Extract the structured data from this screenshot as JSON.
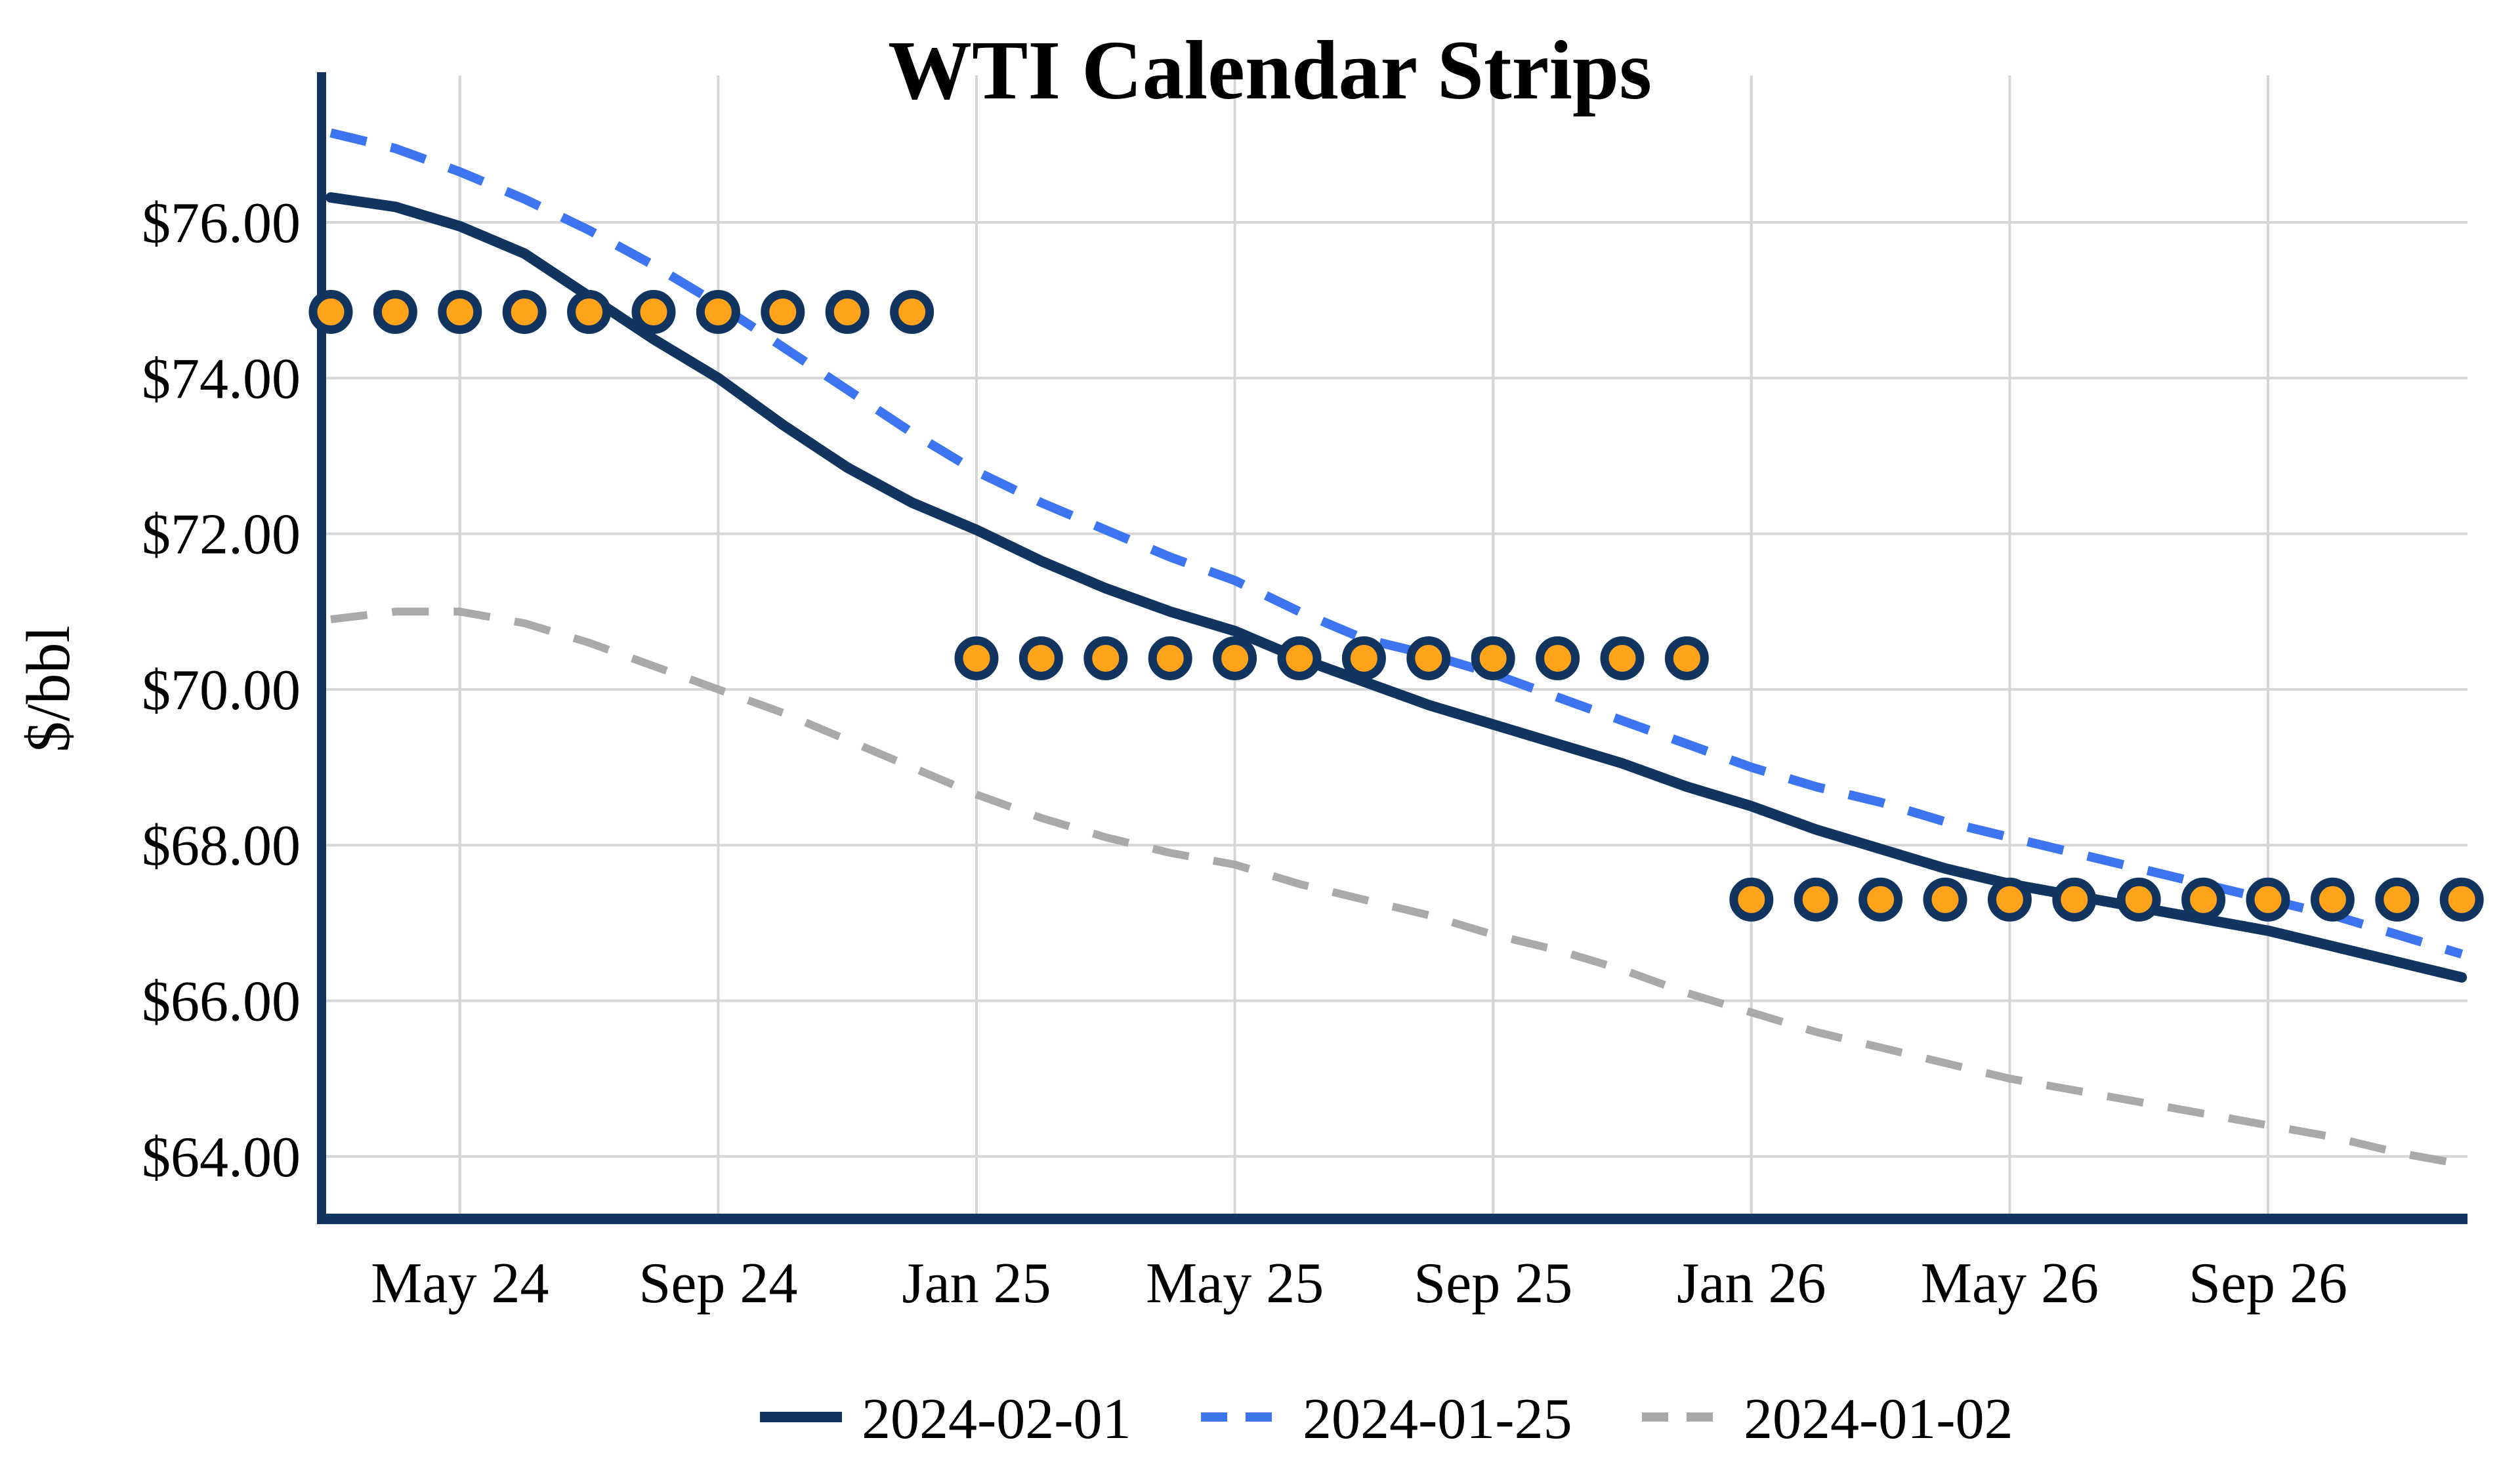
{
  "title": "WTI Calendar Strips",
  "chart_data": {
    "type": "line",
    "title": "WTI Calendar Strips",
    "xlabel": "",
    "ylabel": "$/bbl",
    "x": [
      "Mar 24",
      "Apr 24",
      "May 24",
      "Jun 24",
      "Jul 24",
      "Aug 24",
      "Sep 24",
      "Oct 24",
      "Nov 24",
      "Dec 24",
      "Jan 25",
      "Feb 25",
      "Mar 25",
      "Apr 25",
      "May 25",
      "Jun 25",
      "Jul 25",
      "Aug 25",
      "Sep 25",
      "Oct 25",
      "Nov 25",
      "Dec 25",
      "Jan 26",
      "Feb 26",
      "Mar 26",
      "Apr 26",
      "May 26",
      "Jun 26",
      "Jul 26",
      "Aug 26",
      "Sep 26",
      "Oct 26",
      "Nov 26",
      "Dec 26"
    ],
    "xtick_indices": [
      2,
      6,
      10,
      14,
      18,
      22,
      26,
      30
    ],
    "xtick_labels": [
      "May 24",
      "Sep 24",
      "Jan 25",
      "May 25",
      "Sep 25",
      "Jan 26",
      "May 26",
      "Sep 26"
    ],
    "yticks": [
      {
        "value": 64,
        "label": "$64.00"
      },
      {
        "value": 66,
        "label": "$66.00"
      },
      {
        "value": 68,
        "label": "$68.00"
      },
      {
        "value": 70,
        "label": "$70.00"
      },
      {
        "value": 72,
        "label": "$72.00"
      },
      {
        "value": 74,
        "label": "$74.00"
      },
      {
        "value": 76,
        "label": "$76.00"
      }
    ],
    "ylim": [
      63.2,
      77.9
    ],
    "grid": true,
    "legend_position": "bottom",
    "series": [
      {
        "name": "2024-02-01",
        "line_style": "solid",
        "color": "#12355F",
        "stroke_width": 16,
        "values": [
          76.32,
          76.2,
          75.95,
          75.6,
          75.05,
          74.5,
          74.0,
          73.4,
          72.85,
          72.4,
          72.05,
          71.65,
          71.3,
          71.0,
          70.75,
          70.4,
          70.1,
          69.8,
          69.55,
          69.3,
          69.05,
          68.75,
          68.5,
          68.2,
          67.95,
          67.7,
          67.5,
          67.35,
          67.2,
          67.05,
          66.9,
          66.7,
          66.5,
          66.3
        ]
      },
      {
        "name": "2024-01-25",
        "line_style": "dashed",
        "color": "#3D74F0",
        "stroke_width": 14,
        "values": [
          77.15,
          76.95,
          76.65,
          76.3,
          75.9,
          75.45,
          74.95,
          74.4,
          73.85,
          73.3,
          72.8,
          72.4,
          72.05,
          71.7,
          71.4,
          71.0,
          70.65,
          70.45,
          70.2,
          69.9,
          69.6,
          69.3,
          69.0,
          68.75,
          68.55,
          68.3,
          68.1,
          67.9,
          67.7,
          67.5,
          67.3,
          67.1,
          66.85,
          66.6
        ]
      },
      {
        "name": "2024-01-02",
        "line_style": "dashed",
        "color": "#A9A9A9",
        "stroke_width": 12,
        "values": [
          70.9,
          71.0,
          71.0,
          70.85,
          70.6,
          70.3,
          70.0,
          69.7,
          69.35,
          69.0,
          68.65,
          68.35,
          68.1,
          67.9,
          67.75,
          67.5,
          67.3,
          67.1,
          66.85,
          66.65,
          66.4,
          66.1,
          65.85,
          65.6,
          65.4,
          65.2,
          65.0,
          64.85,
          64.7,
          64.55,
          64.4,
          64.25,
          64.05,
          63.9
        ]
      }
    ],
    "strip_markers": {
      "fill_color": "#FFA31A",
      "border_color": "#12355F",
      "groups": [
        {
          "value": 74.85,
          "from_month": "Mar 24",
          "to_month": "Dec 24",
          "from_index": 0,
          "to_index": 9
        },
        {
          "value": 70.4,
          "from_month": "Jan 25",
          "to_month": "Dec 25",
          "from_index": 10,
          "to_index": 21
        },
        {
          "value": 67.3,
          "from_month": "Jan 26",
          "to_month": "Dec 26",
          "from_index": 22,
          "to_index": 33
        }
      ]
    }
  },
  "colors": {
    "axis": "#12355F",
    "grid": "#D6D6D6",
    "background": "#FFFFFF",
    "text": "#000000"
  }
}
